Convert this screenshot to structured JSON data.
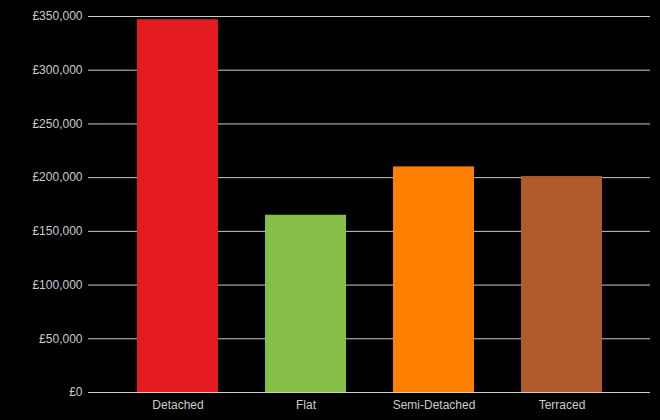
{
  "chart_data": {
    "type": "bar",
    "categories": [
      "Detached",
      "Flat",
      "Semi-Detached",
      "Terraced"
    ],
    "values": [
      347000,
      165000,
      210000,
      201000
    ],
    "colors": [
      "#e31b1e",
      "#86bf48",
      "#ff7f00",
      "#b05a2b"
    ],
    "ylim": [
      0,
      350000
    ],
    "yticks": [
      {
        "value": 0,
        "label": "£0"
      },
      {
        "value": 50000,
        "label": "£50,000"
      },
      {
        "value": 100000,
        "label": "£100,000"
      },
      {
        "value": 150000,
        "label": "£150,000"
      },
      {
        "value": 200000,
        "label": "£200,000"
      },
      {
        "value": 250000,
        "label": "£250,000"
      },
      {
        "value": 300000,
        "label": "£300,000"
      },
      {
        "value": 350000,
        "label": "£350,000"
      }
    ],
    "grid": true
  }
}
